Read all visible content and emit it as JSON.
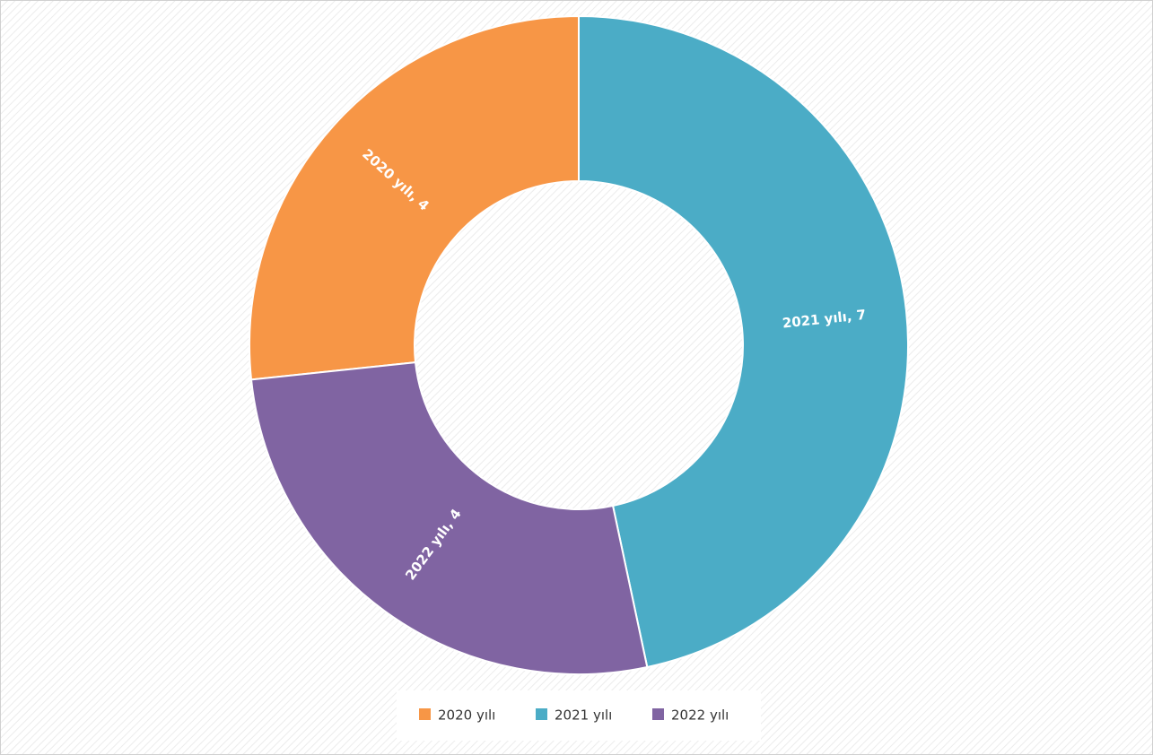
{
  "chart_data": {
    "type": "donut",
    "categories": [
      "2020 yılı",
      "2021 yılı",
      "2022 yılı"
    ],
    "values": [
      4,
      7,
      4
    ],
    "value_labels": [
      "2020 yılı, 4",
      "2021 yılı, 7",
      "2022 yılı, 4"
    ],
    "colors": [
      "#f79646",
      "#4bacc6",
      "#8064a2"
    ],
    "legend": "bottom"
  }
}
